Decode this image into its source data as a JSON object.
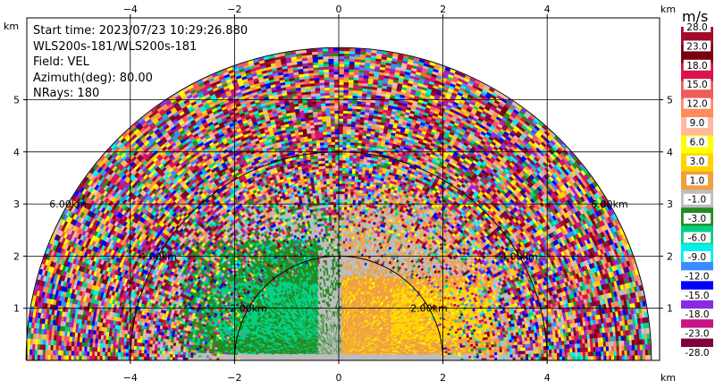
{
  "info": {
    "start_time": "Start time: 2023/07/23 10:29:26.880",
    "instrument": "WLS200s-181/WLS200s-181",
    "field": "Field: VEL",
    "azimuth": "Azimuth(deg): 80.00",
    "nrays": "NRays: 180"
  },
  "chart_data": {
    "type": "heatmap",
    "projection": "RHI",
    "x_unit": "km",
    "y_unit": "km",
    "xlim": [
      -6,
      6
    ],
    "ylim": [
      0,
      5.85
    ],
    "x_ticks": [
      -4,
      -2,
      0,
      2,
      4
    ],
    "y_ticks": [
      1,
      2,
      3,
      4,
      5
    ],
    "grid": true,
    "range_rings_km": [
      2,
      4,
      6
    ],
    "ring_labels": [
      {
        "text": "2.00km",
        "side": "left"
      },
      {
        "text": "2.00km",
        "side": "right"
      },
      {
        "text": "4.00km",
        "side": "left"
      },
      {
        "text": "4.00km",
        "side": "right"
      },
      {
        "text": "6.00km",
        "side": "left"
      },
      {
        "text": "6.00km",
        "side": "right"
      }
    ],
    "colorbar": {
      "unit": "m/s",
      "tick_labels": [
        "28.0",
        "23.0",
        "18.0",
        "15.0",
        "12.0",
        "9.0",
        "6.0",
        "3.0",
        "1.0",
        "-1.0",
        "-3.0",
        "-6.0",
        "-9.0",
        "-12.0",
        "-15.0",
        "-18.0",
        "-23.0",
        "-28.0"
      ],
      "colors": [
        "#a00d2b",
        "#7a0011",
        "#d8154a",
        "#f25b5b",
        "#ff8c5a",
        "#ffb8a0",
        "#ffff00",
        "#ffd400",
        "#f0a040",
        "#bdbdbd",
        "#228b22",
        "#00d084",
        "#00f0f0",
        "#3c8cff",
        "#0000ff",
        "#8a2be2",
        "#c71585",
        "#800040"
      ]
    }
  }
}
